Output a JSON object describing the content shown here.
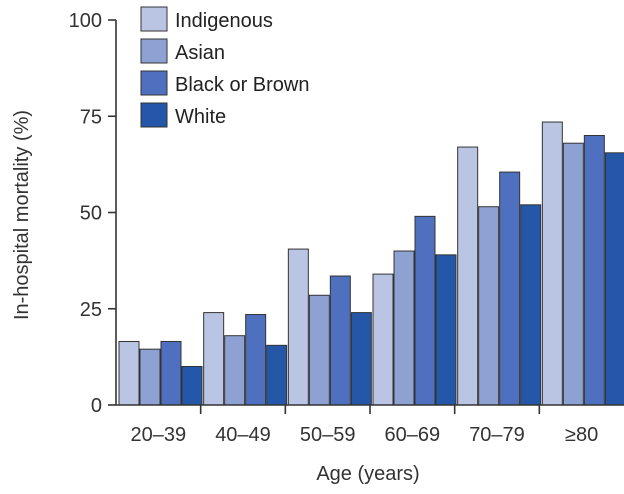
{
  "chart_data": {
    "type": "bar",
    "categories": [
      "20–39",
      "40–49",
      "50–59",
      "60–69",
      "70–79",
      "≥80"
    ],
    "series": [
      {
        "name": "Indigenous",
        "color": "#b9c5e2",
        "values": [
          16.5,
          24.0,
          40.5,
          34.0,
          67.0,
          73.5
        ]
      },
      {
        "name": "Asian",
        "color": "#8da2d2",
        "values": [
          14.5,
          18.0,
          28.5,
          40.0,
          51.5,
          68.0
        ]
      },
      {
        "name": "Black or Brown",
        "color": "#4f70be",
        "values": [
          16.5,
          23.5,
          33.5,
          49.0,
          60.5,
          70.0
        ]
      },
      {
        "name": "White",
        "color": "#2457a8",
        "values": [
          10.0,
          15.5,
          24.0,
          39.0,
          52.0,
          65.5
        ]
      }
    ],
    "xlabel": "Age (years)",
    "ylabel": "In-hospital mortality (%)",
    "ylim": [
      0,
      100
    ],
    "yticks": [
      0,
      25,
      50,
      75,
      100
    ],
    "grid": false,
    "legend_position": "top-left"
  }
}
